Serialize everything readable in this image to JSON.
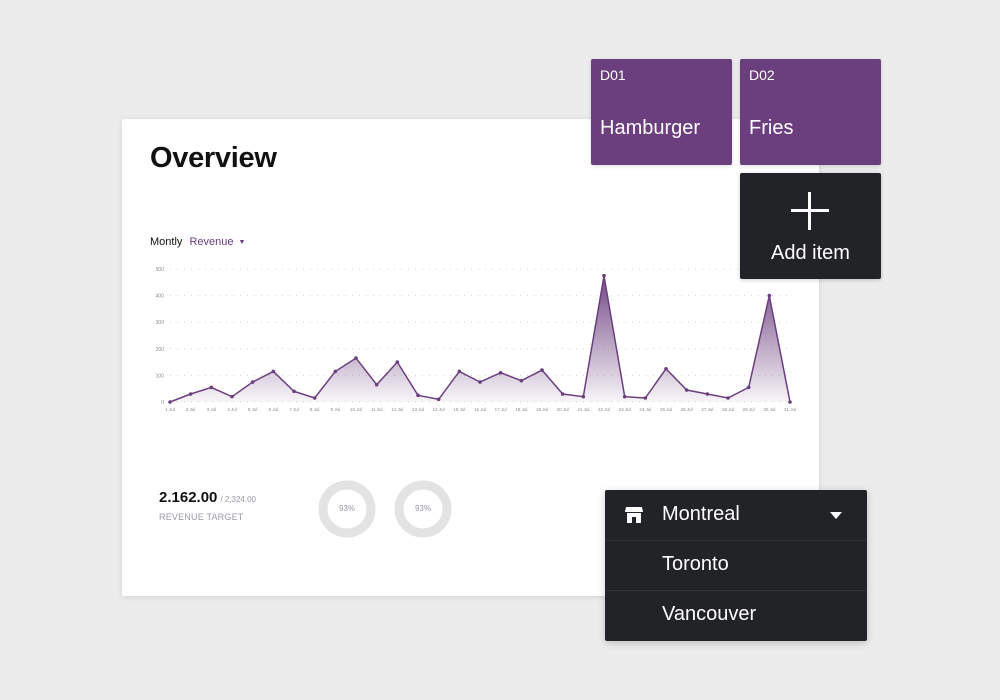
{
  "overview": {
    "title": "Overview",
    "period_label": "Montly",
    "metric_select": "Revenue",
    "revenue_value": "2.162.00",
    "revenue_target": "/ 2,324.00",
    "revenue_label": "REVENUE TARGET",
    "donut1": "93%",
    "donut2": "93%"
  },
  "chart_data": {
    "type": "area",
    "x": [
      "1 Jul",
      "2 Jul",
      "3 Jul",
      "4 Jul",
      "5 Jul",
      "6 Jul",
      "7 Jul",
      "8 Jul",
      "9 Jul",
      "10 Jul",
      "11 Jul",
      "12 Jul",
      "13 Jul",
      "14 Jul",
      "15 Jul",
      "16 Jul",
      "17 Jul",
      "18 Jul",
      "19 Jul",
      "20 Jul",
      "21 Jul",
      "22 Jul",
      "23 Jul",
      "24 Jul",
      "25 Jul",
      "26 Jul",
      "27 Jul",
      "28 Jul",
      "29 Jul",
      "30 Jul",
      "31 Jul"
    ],
    "values": [
      0,
      30,
      55,
      20,
      75,
      115,
      40,
      15,
      115,
      165,
      65,
      150,
      25,
      10,
      115,
      75,
      110,
      80,
      120,
      30,
      20,
      475,
      20,
      15,
      125,
      45,
      30,
      15,
      55,
      400,
      0
    ],
    "yticks": [
      0,
      100,
      200,
      300,
      400,
      500
    ],
    "ylim": [
      0,
      500
    ],
    "grid": true,
    "color": "#6b3f7e"
  },
  "tiles": [
    {
      "code": "D01",
      "name": "Hamburger"
    },
    {
      "code": "D02",
      "name": "Fries"
    }
  ],
  "add_item": {
    "label": "Add item"
  },
  "locations": [
    {
      "name": "Montreal",
      "selected": true
    },
    {
      "name": "Toronto"
    },
    {
      "name": "Vancouver"
    }
  ],
  "colors": {
    "accent": "#6b3f7e",
    "dark_panel": "#222327",
    "background": "#ececec"
  }
}
